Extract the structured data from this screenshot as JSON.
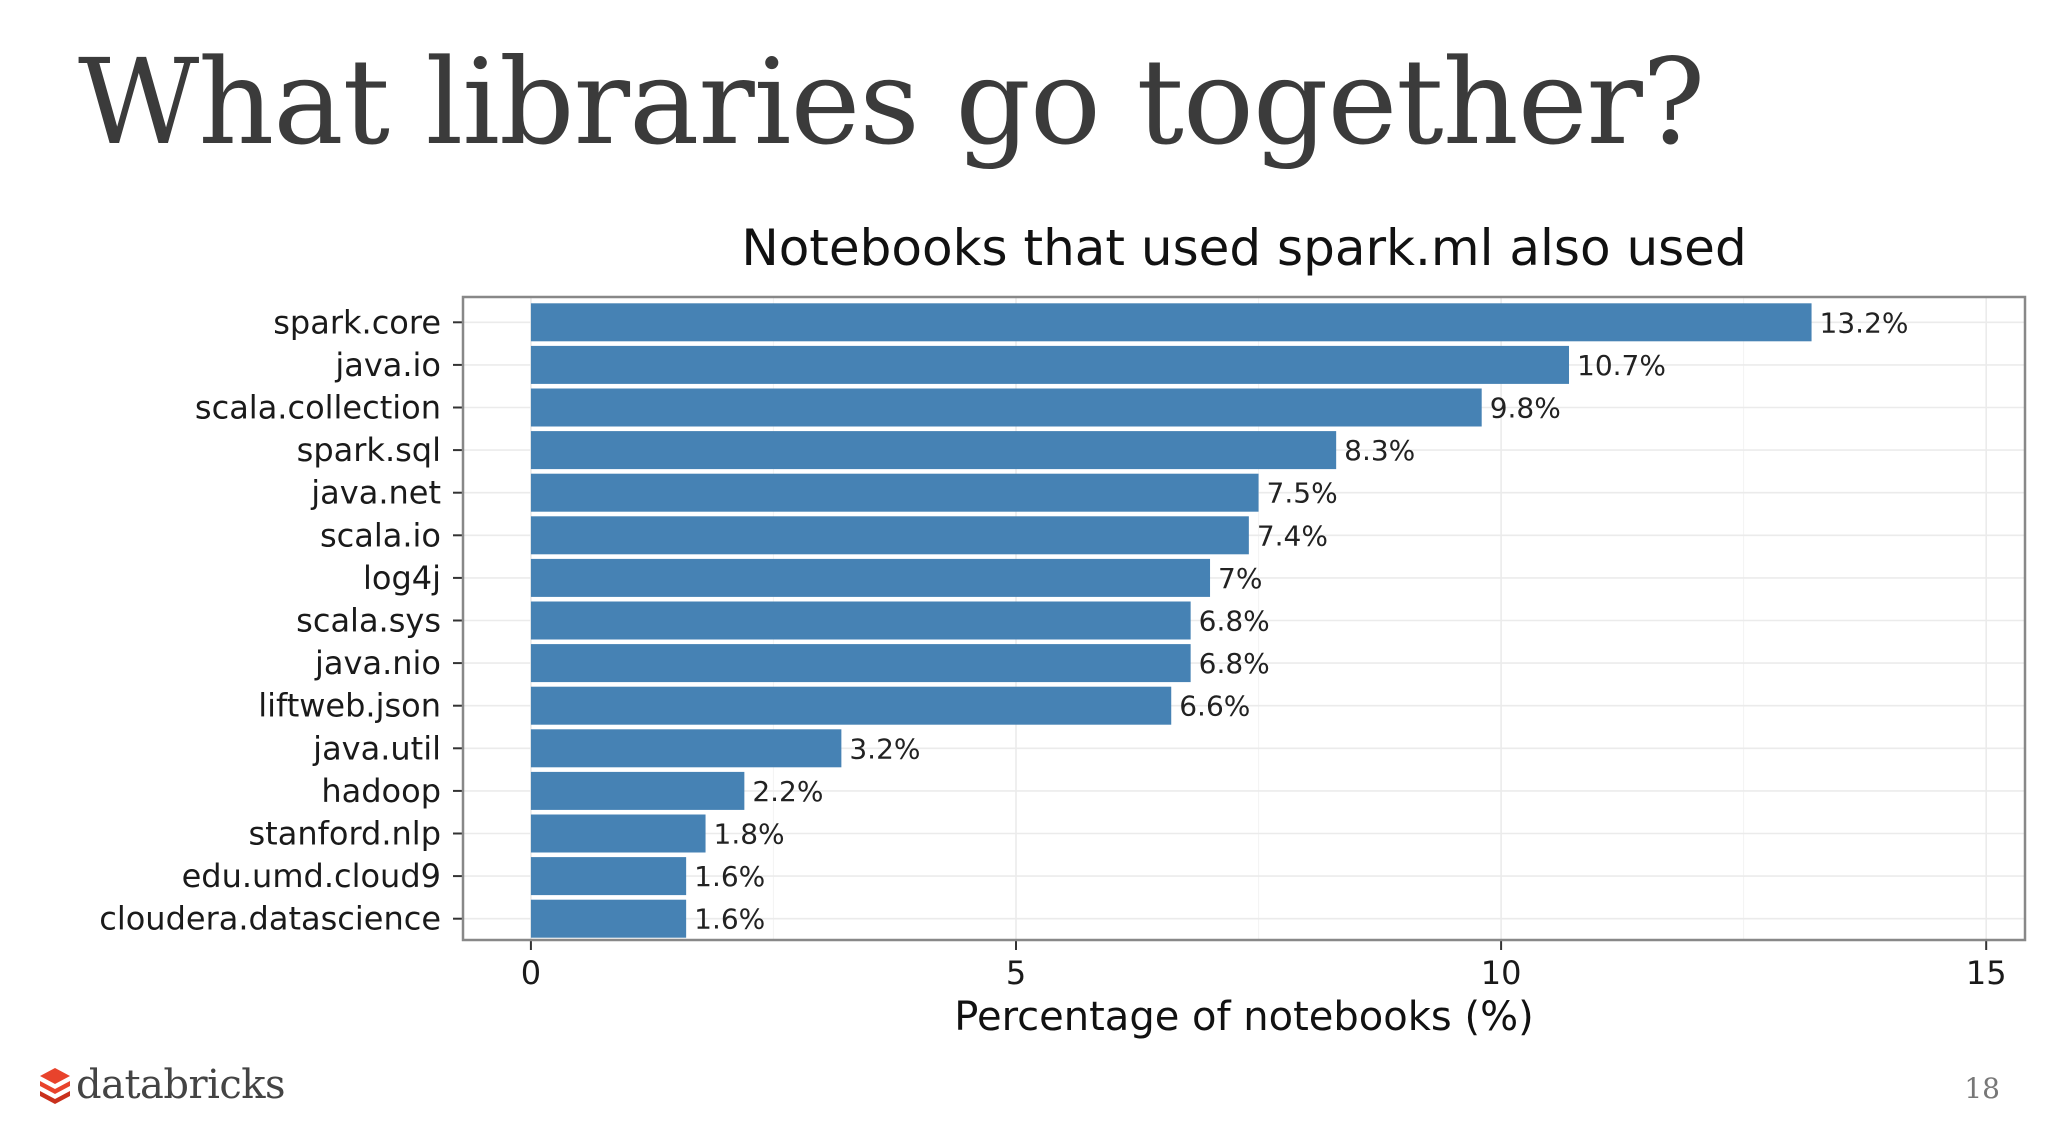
{
  "slide": {
    "title": "What libraries go together?",
    "page_number": "18",
    "logo_text": "databricks"
  },
  "colors": {
    "bar": "#4682b4",
    "title_text": "#3b3b3b",
    "panel_border": "#888888",
    "grid": "#ebebeb",
    "logo_accent": "#e8432c"
  },
  "icons": {
    "logo": "databricks-logo-icon"
  },
  "chart_data": {
    "type": "bar",
    "orientation": "horizontal",
    "title": "Notebooks that used spark.ml also used",
    "xlabel": "Percentage of notebooks (%)",
    "ylabel": "",
    "xlim": [
      -0.7,
      15.4
    ],
    "xticks": [
      0,
      5,
      10,
      15
    ],
    "grid": true,
    "categories": [
      "spark.core",
      "java.io",
      "scala.collection",
      "spark.sql",
      "java.net",
      "scala.io",
      "log4j",
      "scala.sys",
      "java.nio",
      "liftweb.json",
      "java.util",
      "hadoop",
      "stanford.nlp",
      "edu.umd.cloud9",
      "cloudera.datascience"
    ],
    "values": [
      13.2,
      10.7,
      9.8,
      8.3,
      7.5,
      7.4,
      7,
      6.8,
      6.8,
      6.6,
      3.2,
      2.2,
      1.8,
      1.6,
      1.6
    ],
    "data_labels": [
      "13.2%",
      "10.7%",
      "9.8%",
      "8.3%",
      "7.5%",
      "7.4%",
      "7%",
      "6.8%",
      "6.8%",
      "6.6%",
      "3.2%",
      "2.2%",
      "1.8%",
      "1.6%",
      "1.6%"
    ]
  }
}
